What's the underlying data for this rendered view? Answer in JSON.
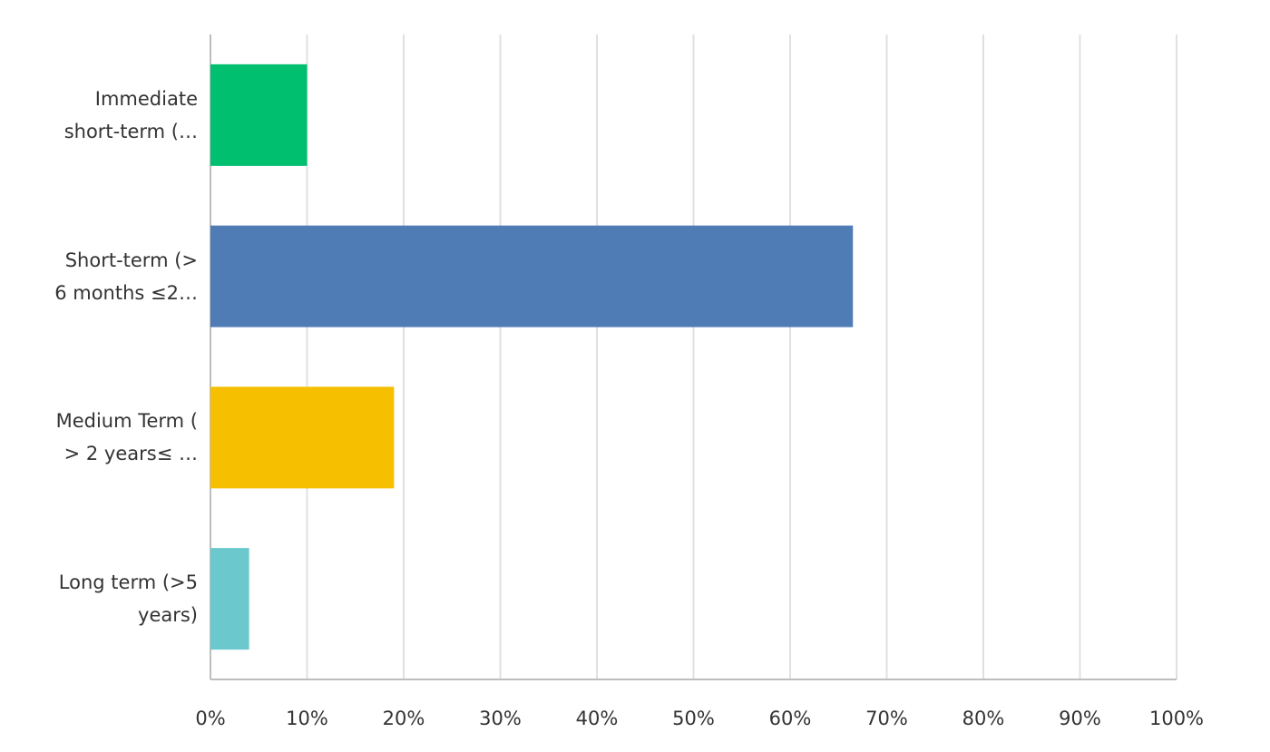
{
  "chart_data": {
    "type": "hbar",
    "categories": [
      "Immediate\nshort-term (…",
      "Short-term (>\n6 months ≤2…",
      "Medium Term (\n> 2 years≤ …",
      "Long term (>5\nyears)"
    ],
    "values": [
      10,
      66.5,
      19,
      4
    ],
    "colors": [
      "#00bf6f",
      "#507cb6",
      "#f6bf00",
      "#6bc8cd"
    ],
    "xlim": [
      0,
      100
    ],
    "xticks": [
      {
        "value": 0,
        "label": "0%"
      },
      {
        "value": 10,
        "label": "10%"
      },
      {
        "value": 20,
        "label": "20%"
      },
      {
        "value": 30,
        "label": "30%"
      },
      {
        "value": 40,
        "label": "40%"
      },
      {
        "value": 50,
        "label": "50%"
      },
      {
        "value": 60,
        "label": "60%"
      },
      {
        "value": 70,
        "label": "70%"
      },
      {
        "value": 80,
        "label": "80%"
      },
      {
        "value": 90,
        "label": "90%"
      },
      {
        "value": 100,
        "label": "100%"
      }
    ],
    "grid": true
  }
}
